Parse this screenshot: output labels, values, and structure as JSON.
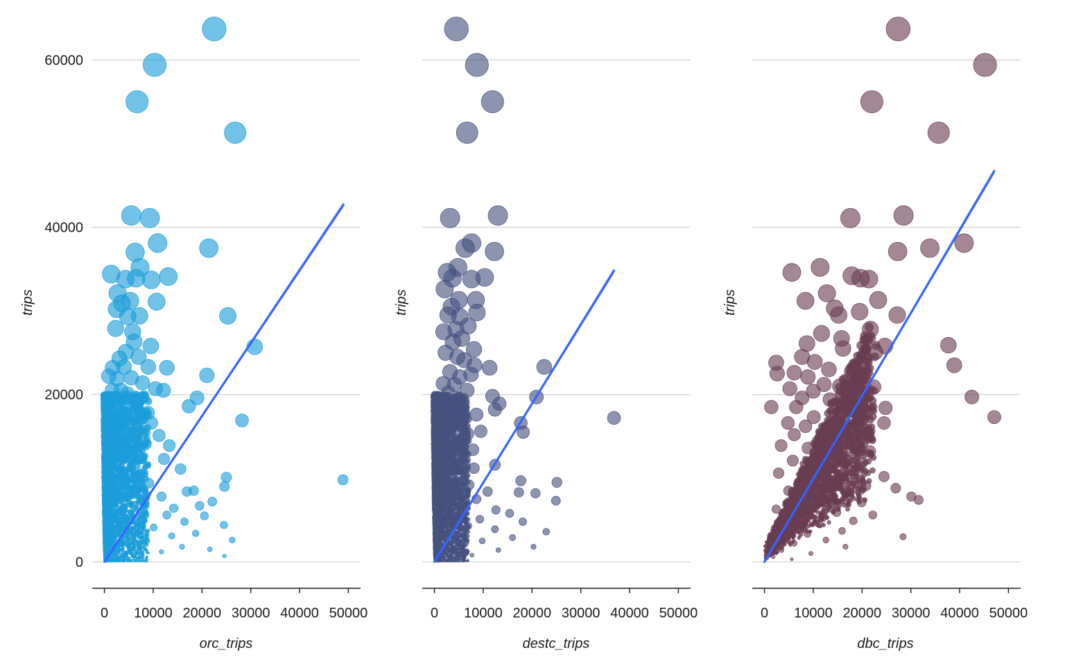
{
  "chart_data": [
    {
      "type": "scatter",
      "xlabel": "orc_trips",
      "ylabel": "trips",
      "xlim": [
        -2500,
        52500
      ],
      "ylim": [
        -3000,
        66500
      ],
      "xticks": [
        0,
        10000,
        20000,
        30000,
        40000,
        50000
      ],
      "yticks": [
        0,
        20000,
        40000,
        60000
      ],
      "show_yticks": true,
      "grid": "horizontal",
      "color": "#1b9dd9",
      "trend": {
        "x0": 0,
        "y0": 0,
        "x1": 49000,
        "y1": 42700,
        "color": "#3366ff"
      },
      "points": [
        [
          22500,
          63700
        ],
        [
          10300,
          59400
        ],
        [
          6700,
          55000
        ],
        [
          26800,
          51300
        ],
        [
          5500,
          41400
        ],
        [
          9300,
          41100
        ],
        [
          10900,
          38100
        ],
        [
          21400,
          37500
        ],
        [
          6300,
          37000
        ],
        [
          7300,
          35200
        ],
        [
          1400,
          34400
        ],
        [
          4300,
          33800
        ],
        [
          6500,
          33900
        ],
        [
          9600,
          33700
        ],
        [
          13100,
          34100
        ],
        [
          2700,
          32100
        ],
        [
          3600,
          30900
        ],
        [
          5300,
          31200
        ],
        [
          10700,
          31100
        ],
        [
          2500,
          30200
        ],
        [
          4800,
          29300
        ],
        [
          7200,
          29400
        ],
        [
          25300,
          29400
        ],
        [
          2300,
          27900
        ],
        [
          5800,
          27500
        ],
        [
          6100,
          26300
        ],
        [
          9500,
          25800
        ],
        [
          30800,
          25700
        ],
        [
          4400,
          25100
        ],
        [
          7000,
          24500
        ],
        [
          3100,
          24300
        ],
        [
          12800,
          23200
        ],
        [
          1700,
          23200
        ],
        [
          4000,
          23300
        ],
        [
          9000,
          23300
        ],
        [
          900,
          22200
        ],
        [
          2600,
          21900
        ],
        [
          5500,
          22000
        ],
        [
          21000,
          22300
        ],
        [
          7800,
          21400
        ],
        [
          10500,
          20700
        ],
        [
          12100,
          20500
        ],
        [
          1600,
          20500
        ],
        [
          3400,
          20500
        ],
        [
          4700,
          20100
        ],
        [
          19000,
          19600
        ],
        [
          6900,
          19300
        ],
        [
          17300,
          18600
        ],
        [
          1500,
          18000
        ],
        [
          8900,
          17800
        ],
        [
          28200,
          16900
        ],
        [
          3000,
          17300
        ],
        [
          9600,
          16600
        ],
        [
          2200,
          15800
        ],
        [
          6000,
          15300
        ],
        [
          11200,
          15100
        ],
        [
          1300,
          14500
        ],
        [
          4200,
          14300
        ],
        [
          8400,
          14100
        ],
        [
          13300,
          13900
        ],
        [
          2500,
          12700
        ],
        [
          7600,
          12400
        ],
        [
          12200,
          12300
        ],
        [
          15600,
          11100
        ],
        [
          1100,
          11000
        ],
        [
          3800,
          10500
        ],
        [
          6800,
          10200
        ],
        [
          25000,
          10100
        ],
        [
          48900,
          9800
        ],
        [
          9100,
          9400
        ],
        [
          24600,
          9000
        ],
        [
          1900,
          8600
        ],
        [
          16900,
          8400
        ],
        [
          18300,
          8500
        ],
        [
          5100,
          8000
        ],
        [
          11700,
          7800
        ],
        [
          22100,
          7200
        ],
        [
          8300,
          7000
        ],
        [
          19500,
          6700
        ],
        [
          14200,
          6400
        ],
        [
          3400,
          6100
        ],
        [
          12800,
          5600
        ],
        [
          20500,
          5500
        ],
        [
          7600,
          5100
        ],
        [
          16400,
          4800
        ],
        [
          24500,
          4400
        ],
        [
          10100,
          4100
        ],
        [
          4600,
          3800
        ],
        [
          18700,
          3400
        ],
        [
          13800,
          3100
        ],
        [
          26200,
          2600
        ],
        [
          8700,
          2500
        ],
        [
          2800,
          2100
        ],
        [
          15900,
          1800
        ],
        [
          21600,
          1500
        ],
        [
          11700,
          1200
        ],
        [
          5900,
          900
        ],
        [
          24600,
          700
        ],
        [
          3600,
          500
        ],
        [
          1200,
          300
        ]
      ]
    },
    {
      "type": "scatter",
      "xlabel": "destc_trips",
      "ylabel": "trips",
      "xlim": [
        -2500,
        52500
      ],
      "ylim": [
        -3000,
        66500
      ],
      "xticks": [
        0,
        10000,
        20000,
        30000,
        40000,
        50000
      ],
      "yticks": [
        0,
        20000,
        40000,
        60000
      ],
      "show_yticks": false,
      "grid": "horizontal",
      "color": "#45527f",
      "trend": {
        "x0": 0,
        "y0": 0,
        "x1": 36800,
        "y1": 34800,
        "color": "#3366ff"
      },
      "points": [
        [
          4500,
          63700
        ],
        [
          8700,
          59400
        ],
        [
          11900,
          55000
        ],
        [
          6700,
          51300
        ],
        [
          3200,
          41100
        ],
        [
          13000,
          41400
        ],
        [
          7600,
          38100
        ],
        [
          6300,
          37500
        ],
        [
          12300,
          37100
        ],
        [
          4800,
          35200
        ],
        [
          2600,
          34600
        ],
        [
          3700,
          33900
        ],
        [
          7600,
          33800
        ],
        [
          10300,
          34000
        ],
        [
          2100,
          32600
        ],
        [
          5000,
          31300
        ],
        [
          8500,
          31300
        ],
        [
          3500,
          30500
        ],
        [
          2800,
          29500
        ],
        [
          5200,
          29300
        ],
        [
          8700,
          29800
        ],
        [
          4400,
          27800
        ],
        [
          6900,
          28200
        ],
        [
          1900,
          27500
        ],
        [
          3800,
          26300
        ],
        [
          5600,
          26700
        ],
        [
          8100,
          25400
        ],
        [
          2300,
          25000
        ],
        [
          4700,
          24500
        ],
        [
          6100,
          24100
        ],
        [
          8200,
          23500
        ],
        [
          11300,
          23200
        ],
        [
          22500,
          23300
        ],
        [
          3200,
          22700
        ],
        [
          5200,
          22100
        ],
        [
          7500,
          22400
        ],
        [
          1800,
          21300
        ],
        [
          4100,
          21200
        ],
        [
          6700,
          20500
        ],
        [
          2800,
          20200
        ],
        [
          11900,
          19800
        ],
        [
          20900,
          19700
        ],
        [
          3900,
          19000
        ],
        [
          13300,
          18900
        ],
        [
          12400,
          18200
        ],
        [
          1400,
          18000
        ],
        [
          5600,
          17300
        ],
        [
          8600,
          17600
        ],
        [
          36800,
          17200
        ],
        [
          17700,
          16600
        ],
        [
          2500,
          16300
        ],
        [
          4400,
          15800
        ],
        [
          6800,
          15300
        ],
        [
          9500,
          15600
        ],
        [
          18200,
          15500
        ],
        [
          1100,
          14700
        ],
        [
          3400,
          14300
        ],
        [
          5700,
          13800
        ],
        [
          7900,
          13400
        ],
        [
          2100,
          12700
        ],
        [
          4700,
          12200
        ],
        [
          6100,
          11700
        ],
        [
          8100,
          11200
        ],
        [
          12400,
          11600
        ],
        [
          1500,
          10400
        ],
        [
          3600,
          10000
        ],
        [
          5800,
          9600
        ],
        [
          17700,
          9700
        ],
        [
          25100,
          9500
        ],
        [
          7100,
          9200
        ],
        [
          2900,
          8600
        ],
        [
          10900,
          8400
        ],
        [
          17300,
          8300
        ],
        [
          20700,
          8200
        ],
        [
          4800,
          7900
        ],
        [
          8600,
          7500
        ],
        [
          24900,
          7300
        ],
        [
          2100,
          6900
        ],
        [
          6400,
          6500
        ],
        [
          12600,
          6200
        ],
        [
          15400,
          5800
        ],
        [
          3800,
          5400
        ],
        [
          9300,
          5100
        ],
        [
          18100,
          4800
        ],
        [
          6900,
          4300
        ],
        [
          12400,
          3900
        ],
        [
          22900,
          3600
        ],
        [
          2800,
          3300
        ],
        [
          16000,
          2900
        ],
        [
          9800,
          2500
        ],
        [
          5200,
          2100
        ],
        [
          20300,
          1800
        ],
        [
          13100,
          1400
        ],
        [
          1800,
          1100
        ],
        [
          7700,
          800
        ],
        [
          3400,
          400
        ]
      ]
    },
    {
      "type": "scatter",
      "xlabel": "dbc_trips",
      "ylabel": "trips",
      "xlim": [
        -2500,
        52500
      ],
      "ylim": [
        -3000,
        66500
      ],
      "xticks": [
        0,
        10000,
        20000,
        30000,
        40000,
        50000
      ],
      "yticks": [
        0,
        20000,
        40000,
        60000
      ],
      "show_yticks": false,
      "grid": "horizontal",
      "color": "#6a3d52",
      "trend": {
        "x0": 0,
        "y0": 0,
        "x1": 47100,
        "y1": 46700,
        "color": "#3366ff"
      },
      "points": [
        [
          27400,
          63700
        ],
        [
          45200,
          59400
        ],
        [
          22000,
          55000
        ],
        [
          35700,
          51300
        ],
        [
          17600,
          41100
        ],
        [
          28500,
          41400
        ],
        [
          40900,
          38100
        ],
        [
          27300,
          37100
        ],
        [
          33900,
          37500
        ],
        [
          11400,
          35200
        ],
        [
          5600,
          34600
        ],
        [
          17900,
          34200
        ],
        [
          19700,
          33900
        ],
        [
          21400,
          33800
        ],
        [
          8400,
          31200
        ],
        [
          12800,
          32100
        ],
        [
          23300,
          31300
        ],
        [
          14400,
          30300
        ],
        [
          15200,
          29500
        ],
        [
          19500,
          29900
        ],
        [
          27200,
          29500
        ],
        [
          21700,
          27800
        ],
        [
          11700,
          27300
        ],
        [
          15800,
          26700
        ],
        [
          8700,
          26100
        ],
        [
          37700,
          25900
        ],
        [
          16100,
          25500
        ],
        [
          22700,
          25100
        ],
        [
          24700,
          25800
        ],
        [
          7700,
          24500
        ],
        [
          10300,
          23900
        ],
        [
          2400,
          23800
        ],
        [
          38900,
          23500
        ],
        [
          13200,
          23000
        ],
        [
          17900,
          22800
        ],
        [
          6100,
          22600
        ],
        [
          8900,
          22100
        ],
        [
          2600,
          22500
        ],
        [
          12200,
          21200
        ],
        [
          15400,
          21000
        ],
        [
          22400,
          20900
        ],
        [
          5200,
          20700
        ],
        [
          10000,
          20400
        ],
        [
          17300,
          20300
        ],
        [
          42500,
          19700
        ],
        [
          7700,
          19600
        ],
        [
          13400,
          19400
        ],
        [
          19800,
          18900
        ],
        [
          1400,
          18500
        ],
        [
          6500,
          18500
        ],
        [
          24800,
          18400
        ],
        [
          47100,
          17300
        ],
        [
          10100,
          17300
        ],
        [
          15700,
          17100
        ],
        [
          4800,
          16600
        ],
        [
          24500,
          16600
        ],
        [
          8400,
          16200
        ],
        [
          13100,
          15900
        ],
        [
          18600,
          15600
        ],
        [
          6100,
          15200
        ],
        [
          11600,
          14800
        ],
        [
          16400,
          14100
        ],
        [
          3400,
          13900
        ],
        [
          8900,
          13600
        ],
        [
          21600,
          13200
        ],
        [
          14100,
          12600
        ],
        [
          5800,
          12100
        ],
        [
          19900,
          11800
        ],
        [
          10800,
          11400
        ],
        [
          17500,
          10900
        ],
        [
          2900,
          10600
        ],
        [
          24500,
          10200
        ],
        [
          13200,
          9800
        ],
        [
          7100,
          9400
        ],
        [
          20800,
          9100
        ],
        [
          26900,
          8800
        ],
        [
          4900,
          8500
        ],
        [
          16800,
          8200
        ],
        [
          30100,
          7800
        ],
        [
          11700,
          7400
        ],
        [
          31600,
          7400
        ],
        [
          19900,
          7100
        ],
        [
          9100,
          6700
        ],
        [
          2400,
          6300
        ],
        [
          14800,
          5900
        ],
        [
          22200,
          5600
        ],
        [
          6900,
          5200
        ],
        [
          18200,
          4900
        ],
        [
          11300,
          4500
        ],
        [
          4100,
          4100
        ],
        [
          15900,
          3700
        ],
        [
          28400,
          3000
        ],
        [
          8800,
          3300
        ],
        [
          12600,
          2600
        ],
        [
          6100,
          2200
        ],
        [
          16600,
          1800
        ],
        [
          3500,
          1400
        ],
        [
          9500,
          1000
        ],
        [
          1800,
          600
        ],
        [
          5600,
          300
        ]
      ]
    }
  ]
}
